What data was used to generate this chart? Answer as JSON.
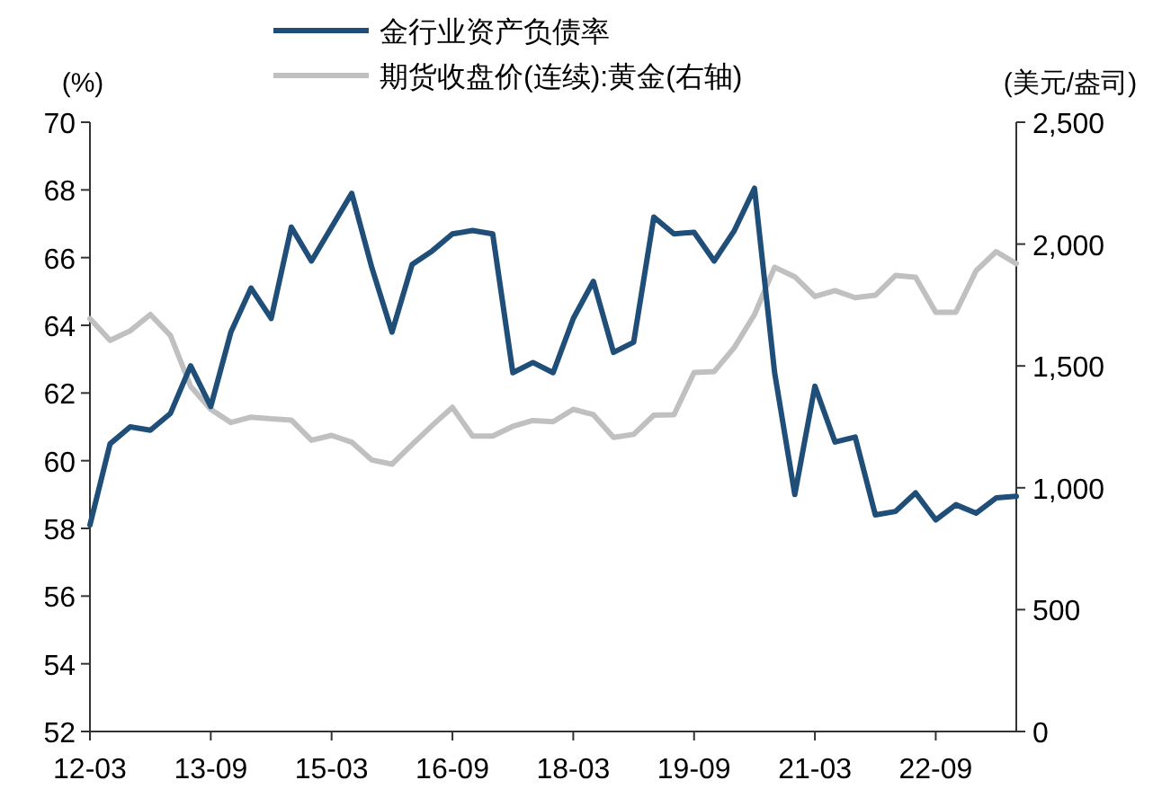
{
  "chart_data": {
    "type": "line",
    "categories": [
      "12-03",
      null,
      null,
      null,
      null,
      null,
      "13-09",
      null,
      null,
      null,
      null,
      null,
      "15-03",
      null,
      null,
      null,
      null,
      null,
      "16-09",
      null,
      null,
      null,
      null,
      null,
      "18-03",
      null,
      null,
      null,
      null,
      null,
      "19-09",
      null,
      null,
      null,
      null,
      null,
      "21-03",
      null,
      null,
      null,
      null,
      null,
      "22-09",
      null,
      null,
      null,
      null
    ],
    "series": [
      {
        "name": "金行业资产负债率",
        "color": "#1f4e79",
        "values": [
          58.1,
          60.5,
          61.0,
          60.9,
          61.4,
          62.8,
          61.6,
          63.8,
          65.1,
          64.2,
          66.9,
          65.9,
          66.9,
          67.9,
          65.7,
          63.8,
          65.8,
          66.2,
          66.7,
          66.8,
          66.7,
          62.6,
          62.9,
          62.6,
          64.2,
          65.3,
          63.2,
          63.5,
          67.2,
          66.7,
          66.75,
          65.9,
          66.8,
          68.05,
          62.6,
          59.0,
          62.2,
          60.55,
          60.7,
          58.4,
          58.5,
          59.05,
          58.25,
          58.7,
          58.45,
          58.9,
          58.95
        ]
      },
      {
        "name": "期货收盘价(连续):黄金(右轴)",
        "color": "#c0c0c0",
        "axis": "y2",
        "values": [
          1694,
          1605,
          1644,
          1711,
          1625,
          1416,
          1322,
          1268,
          1290,
          1283,
          1278,
          1195,
          1215,
          1187,
          1114,
          1097,
          1178,
          1256,
          1330,
          1212,
          1212,
          1252,
          1276,
          1271,
          1322,
          1300,
          1207,
          1219,
          1298,
          1300,
          1473,
          1477,
          1576,
          1711,
          1905,
          1866,
          1785,
          1809,
          1780,
          1790,
          1871,
          1864,
          1720,
          1720,
          1890,
          1969,
          1920
        ]
      }
    ],
    "ylabel": "(%)",
    "y2label": "(美元/盎司)",
    "ylim": [
      52,
      70
    ],
    "yticks": [
      52,
      54,
      56,
      58,
      60,
      62,
      64,
      66,
      68,
      70
    ],
    "y2lim": [
      0,
      2500
    ],
    "y2ticks": [
      0,
      500,
      {
        "value": 1000,
        "label": "1,000"
      },
      {
        "value": 1500,
        "label": "1,500"
      },
      {
        "value": 2000,
        "label": "2,000"
      },
      {
        "value": 2500,
        "label": "2,500"
      }
    ],
    "legend": "top",
    "grid": false,
    "marker": "none",
    "line_style": "solid"
  }
}
